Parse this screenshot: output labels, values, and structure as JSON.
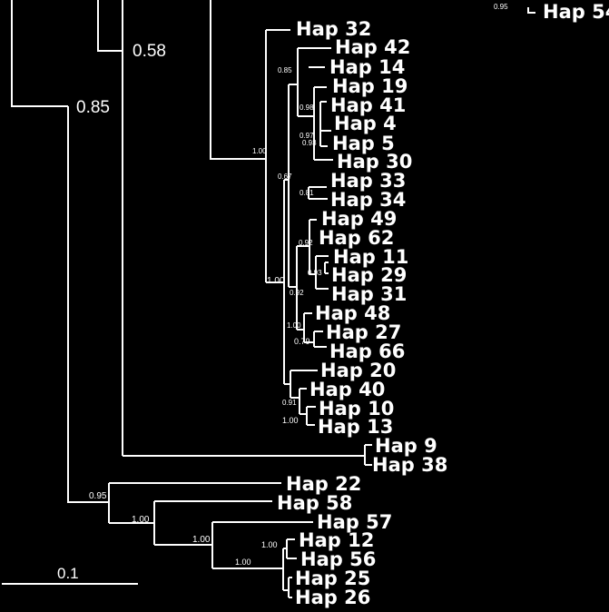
{
  "tree": {
    "taxa": [
      "Hap 54",
      "Hap 32",
      "Hap 42",
      "Hap 14",
      "Hap 19",
      "Hap 41",
      "Hap 4",
      "Hap 5",
      "Hap 30",
      "Hap 33",
      "Hap 34",
      "Hap 49",
      "Hap 62",
      "Hap 11",
      "Hap 29",
      "Hap 31",
      "Hap 48",
      "Hap 27",
      "Hap 66",
      "Hap 20",
      "Hap 40",
      "Hap 10",
      "Hap 13",
      "Hap 9",
      "Hap 38",
      "Hap 22",
      "Hap 58",
      "Hap 57",
      "Hap 12",
      "Hap 56",
      "Hap 25",
      "Hap 26"
    ],
    "support_values": [
      "0.95",
      "0.58",
      "0.85",
      "0.85",
      "0.98",
      "1.00",
      "0.97",
      "0.67",
      "0.93",
      "0.81",
      "0.92",
      "1.00",
      "0.93",
      "0.79",
      "0.92",
      "1.00",
      "1.00",
      "0.91",
      "0.95",
      "1.00",
      "1.00",
      "1.00",
      "1.00"
    ],
    "scale_bar": "0.1"
  }
}
